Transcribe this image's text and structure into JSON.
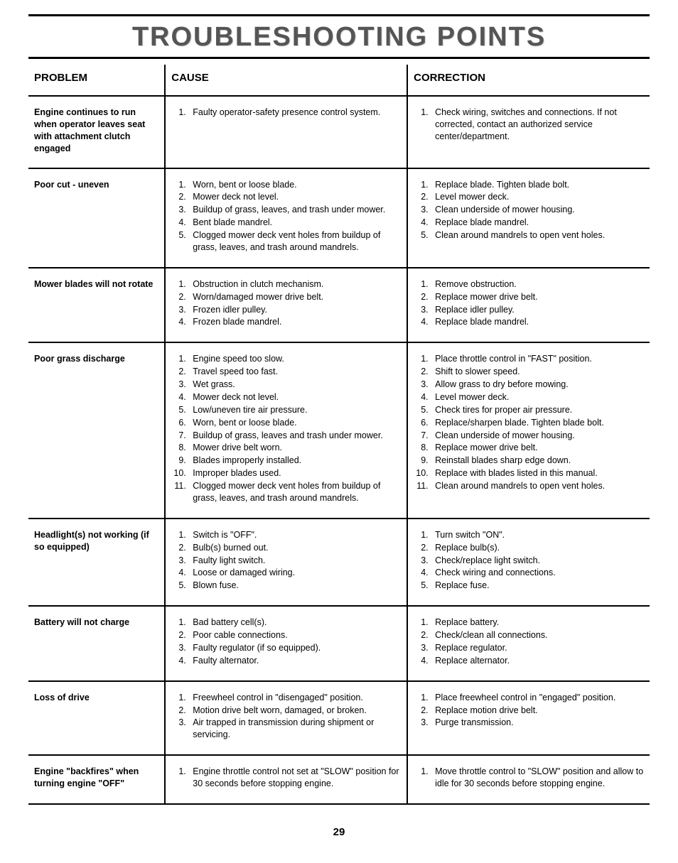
{
  "title": "TROUBLESHOOTING POINTS",
  "page_number": "29",
  "headers": {
    "problem": "PROBLEM",
    "cause": "CAUSE",
    "correction": "CORRECTION"
  },
  "rows": [
    {
      "problem": "Engine continues to run when operator leaves seat with attachment clutch engaged",
      "causes": [
        "Faulty operator-safety presence control system."
      ],
      "corrections": [
        "Check wiring, switches and connections. If not corrected, contact an authorized service center/department."
      ]
    },
    {
      "problem": "Poor cut - uneven",
      "causes": [
        "Worn, bent or loose blade.",
        "Mower deck not level.",
        "Buildup of grass, leaves, and trash under mower.",
        "Bent blade mandrel.",
        "Clogged mower deck vent holes from buildup of grass, leaves, and trash around mandrels."
      ],
      "corrections": [
        "Replace blade. Tighten blade bolt.",
        "Level mower deck.",
        "Clean underside of mower housing.",
        "Replace blade mandrel.",
        "Clean around mandrels to open vent holes."
      ]
    },
    {
      "problem": "Mower blades will not rotate",
      "causes": [
        "Obstruction in clutch mechanism.",
        "Worn/damaged mower drive belt.",
        "Frozen idler pulley.",
        "Frozen blade mandrel."
      ],
      "corrections": [
        "Remove obstruction.",
        "Replace mower drive belt.",
        "Replace idler pulley.",
        "Replace blade mandrel."
      ]
    },
    {
      "problem": "Poor grass discharge",
      "causes": [
        "Engine speed too slow.",
        "Travel speed too fast.",
        "Wet grass.",
        "Mower deck not level.",
        "Low/uneven tire air pressure.",
        "Worn, bent or loose blade.",
        "Buildup of grass, leaves and trash under mower.",
        "Mower drive belt worn.",
        "Blades improperly installed.",
        "Improper blades used.",
        "Clogged mower deck vent holes from buildup of grass, leaves, and trash around mandrels."
      ],
      "corrections": [
        "Place throttle control in \"FAST\" position.",
        "Shift to slower speed.",
        "Allow grass to dry before mowing.",
        "Level mower deck.",
        "Check tires for proper air pressure.",
        "Replace/sharpen blade. Tighten blade bolt.",
        "Clean underside of mower housing.",
        "Replace mower drive belt.",
        "Reinstall blades sharp edge down.",
        "Replace with blades listed in this manual.",
        "Clean around mandrels to open vent holes."
      ]
    },
    {
      "problem": "Headlight(s) not working (if so equipped)",
      "causes": [
        "Switch is \"OFF\".",
        "Bulb(s) burned out.",
        "Faulty light switch.",
        "Loose or damaged wiring.",
        "Blown fuse."
      ],
      "corrections": [
        "Turn switch \"ON\".",
        "Replace bulb(s).",
        "Check/replace light switch.",
        "Check wiring and connections.",
        "Replace fuse."
      ]
    },
    {
      "problem": "Battery will not charge",
      "causes": [
        "Bad battery cell(s).",
        "Poor cable connections.",
        "Faulty regulator (if so equipped).",
        "Faulty alternator."
      ],
      "corrections": [
        "Replace battery.",
        "Check/clean all connections.",
        "Replace regulator.",
        "Replace alternator."
      ]
    },
    {
      "problem": "Loss of drive",
      "causes": [
        "Freewheel control in \"disengaged\" position.",
        "Motion drive belt worn, damaged, or broken.",
        "Air trapped in transmission during shipment or servicing."
      ],
      "corrections": [
        "Place freewheel control in \"engaged\" position.",
        "Replace motion drive belt.",
        "Purge transmission."
      ]
    },
    {
      "problem": "Engine \"backfires\" when turning engine \"OFF\"",
      "causes": [
        "Engine throttle control not set at \"SLOW\" position for 30 seconds before stopping engine."
      ],
      "corrections": [
        "Move throttle control to \"SLOW\" position and allow to idle for 30 seconds before stopping engine."
      ]
    }
  ]
}
